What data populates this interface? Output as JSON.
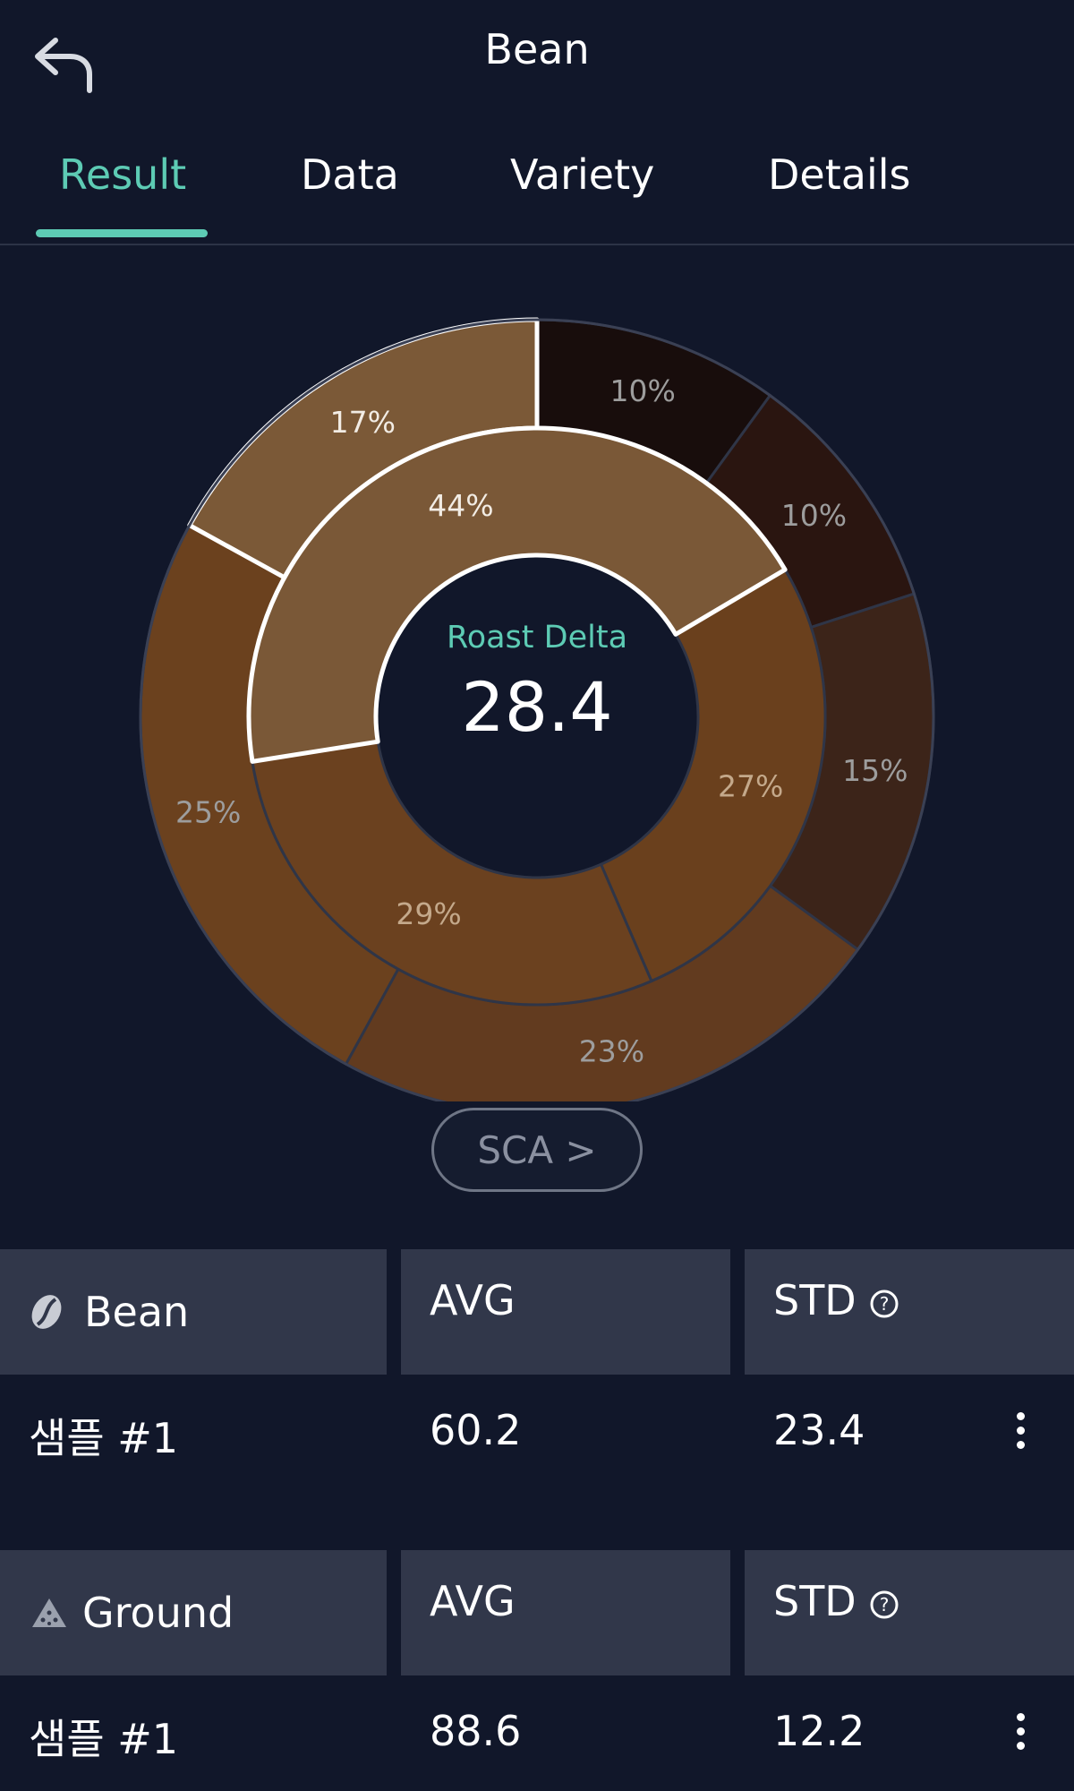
{
  "header": {
    "title": "Bean",
    "back_icon": "back-arrow-icon"
  },
  "tabs": [
    {
      "label": "Result",
      "active": true
    },
    {
      "label": "Data",
      "active": false
    },
    {
      "label": "Variety",
      "active": false
    },
    {
      "label": "Details",
      "active": false
    }
  ],
  "colors": {
    "accent": "#5dcbb4",
    "background": "#11172a",
    "header_cell": "#31374a"
  },
  "chart": {
    "center_label": "Roast Delta",
    "center_value": "28.4",
    "button_label": "SCA >"
  },
  "chart_data": {
    "type": "pie",
    "rings": [
      {
        "name": "inner",
        "slices": [
          {
            "label": "44%",
            "value": 44,
            "color": "#7a5837",
            "highlighted": true
          },
          {
            "label": "27%",
            "value": 27,
            "color": "#6a401d"
          },
          {
            "label": "29%",
            "value": 29,
            "color": "#6b411f"
          }
        ]
      },
      {
        "name": "outer",
        "slices": [
          {
            "label": "10%",
            "value": 10,
            "color": "#180d0c"
          },
          {
            "label": "10%",
            "value": 10,
            "color": "#2a1510"
          },
          {
            "label": "15%",
            "value": 15,
            "color": "#3c2419"
          },
          {
            "label": "23%",
            "value": 23,
            "color": "#623b1f"
          },
          {
            "label": "25%",
            "value": 25,
            "color": "#6b411e"
          },
          {
            "label": "17%",
            "value": 17,
            "color": "#7b5937",
            "highlighted": true
          }
        ]
      }
    ]
  },
  "tables": [
    {
      "category": "Bean",
      "category_icon": "coffee-bean-icon",
      "col_avg": "AVG",
      "col_std": "STD",
      "help_icon": "question-circle-icon",
      "rows": [
        {
          "name": "샘플 #1",
          "avg": "60.2",
          "std": "23.4"
        }
      ]
    },
    {
      "category": "Ground",
      "category_icon": "ground-coffee-icon",
      "col_avg": "AVG",
      "col_std": "STD",
      "help_icon": "question-circle-icon",
      "rows": [
        {
          "name": "샘플 #1",
          "avg": "88.6",
          "std": "12.2"
        }
      ]
    }
  ]
}
